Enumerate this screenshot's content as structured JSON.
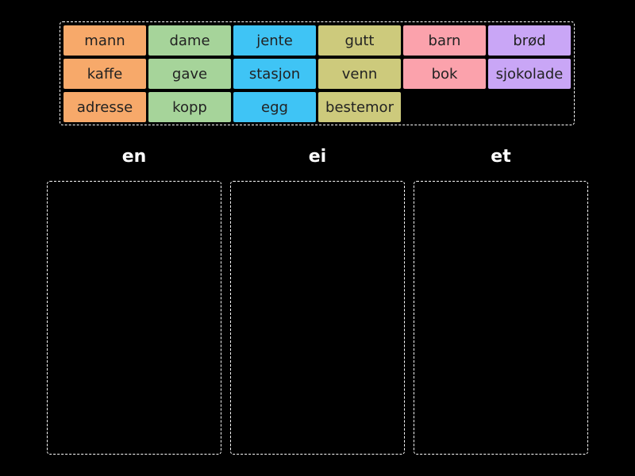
{
  "word_bank": {
    "tiles": [
      {
        "label": "mann",
        "color": "#f7a96a"
      },
      {
        "label": "dame",
        "color": "#a6d49a"
      },
      {
        "label": "jente",
        "color": "#3fc4f5"
      },
      {
        "label": "gutt",
        "color": "#cdca7c"
      },
      {
        "label": "barn",
        "color": "#fba2ac"
      },
      {
        "label": "brød",
        "color": "#c9a6f6"
      },
      {
        "label": "kaffe",
        "color": "#f7a96a"
      },
      {
        "label": "gave",
        "color": "#a6d49a"
      },
      {
        "label": "stasjon",
        "color": "#3fc4f5"
      },
      {
        "label": "venn",
        "color": "#cdca7c"
      },
      {
        "label": "bok",
        "color": "#fba2ac"
      },
      {
        "label": "sjokolade",
        "color": "#c9a6f6"
      },
      {
        "label": "adresse",
        "color": "#f7a96a"
      },
      {
        "label": "kopp",
        "color": "#a6d49a"
      },
      {
        "label": "egg",
        "color": "#3fc4f5"
      },
      {
        "label": "bestemor",
        "color": "#cdca7c"
      }
    ]
  },
  "buckets": [
    {
      "title": "en"
    },
    {
      "title": "ei"
    },
    {
      "title": "et"
    }
  ]
}
